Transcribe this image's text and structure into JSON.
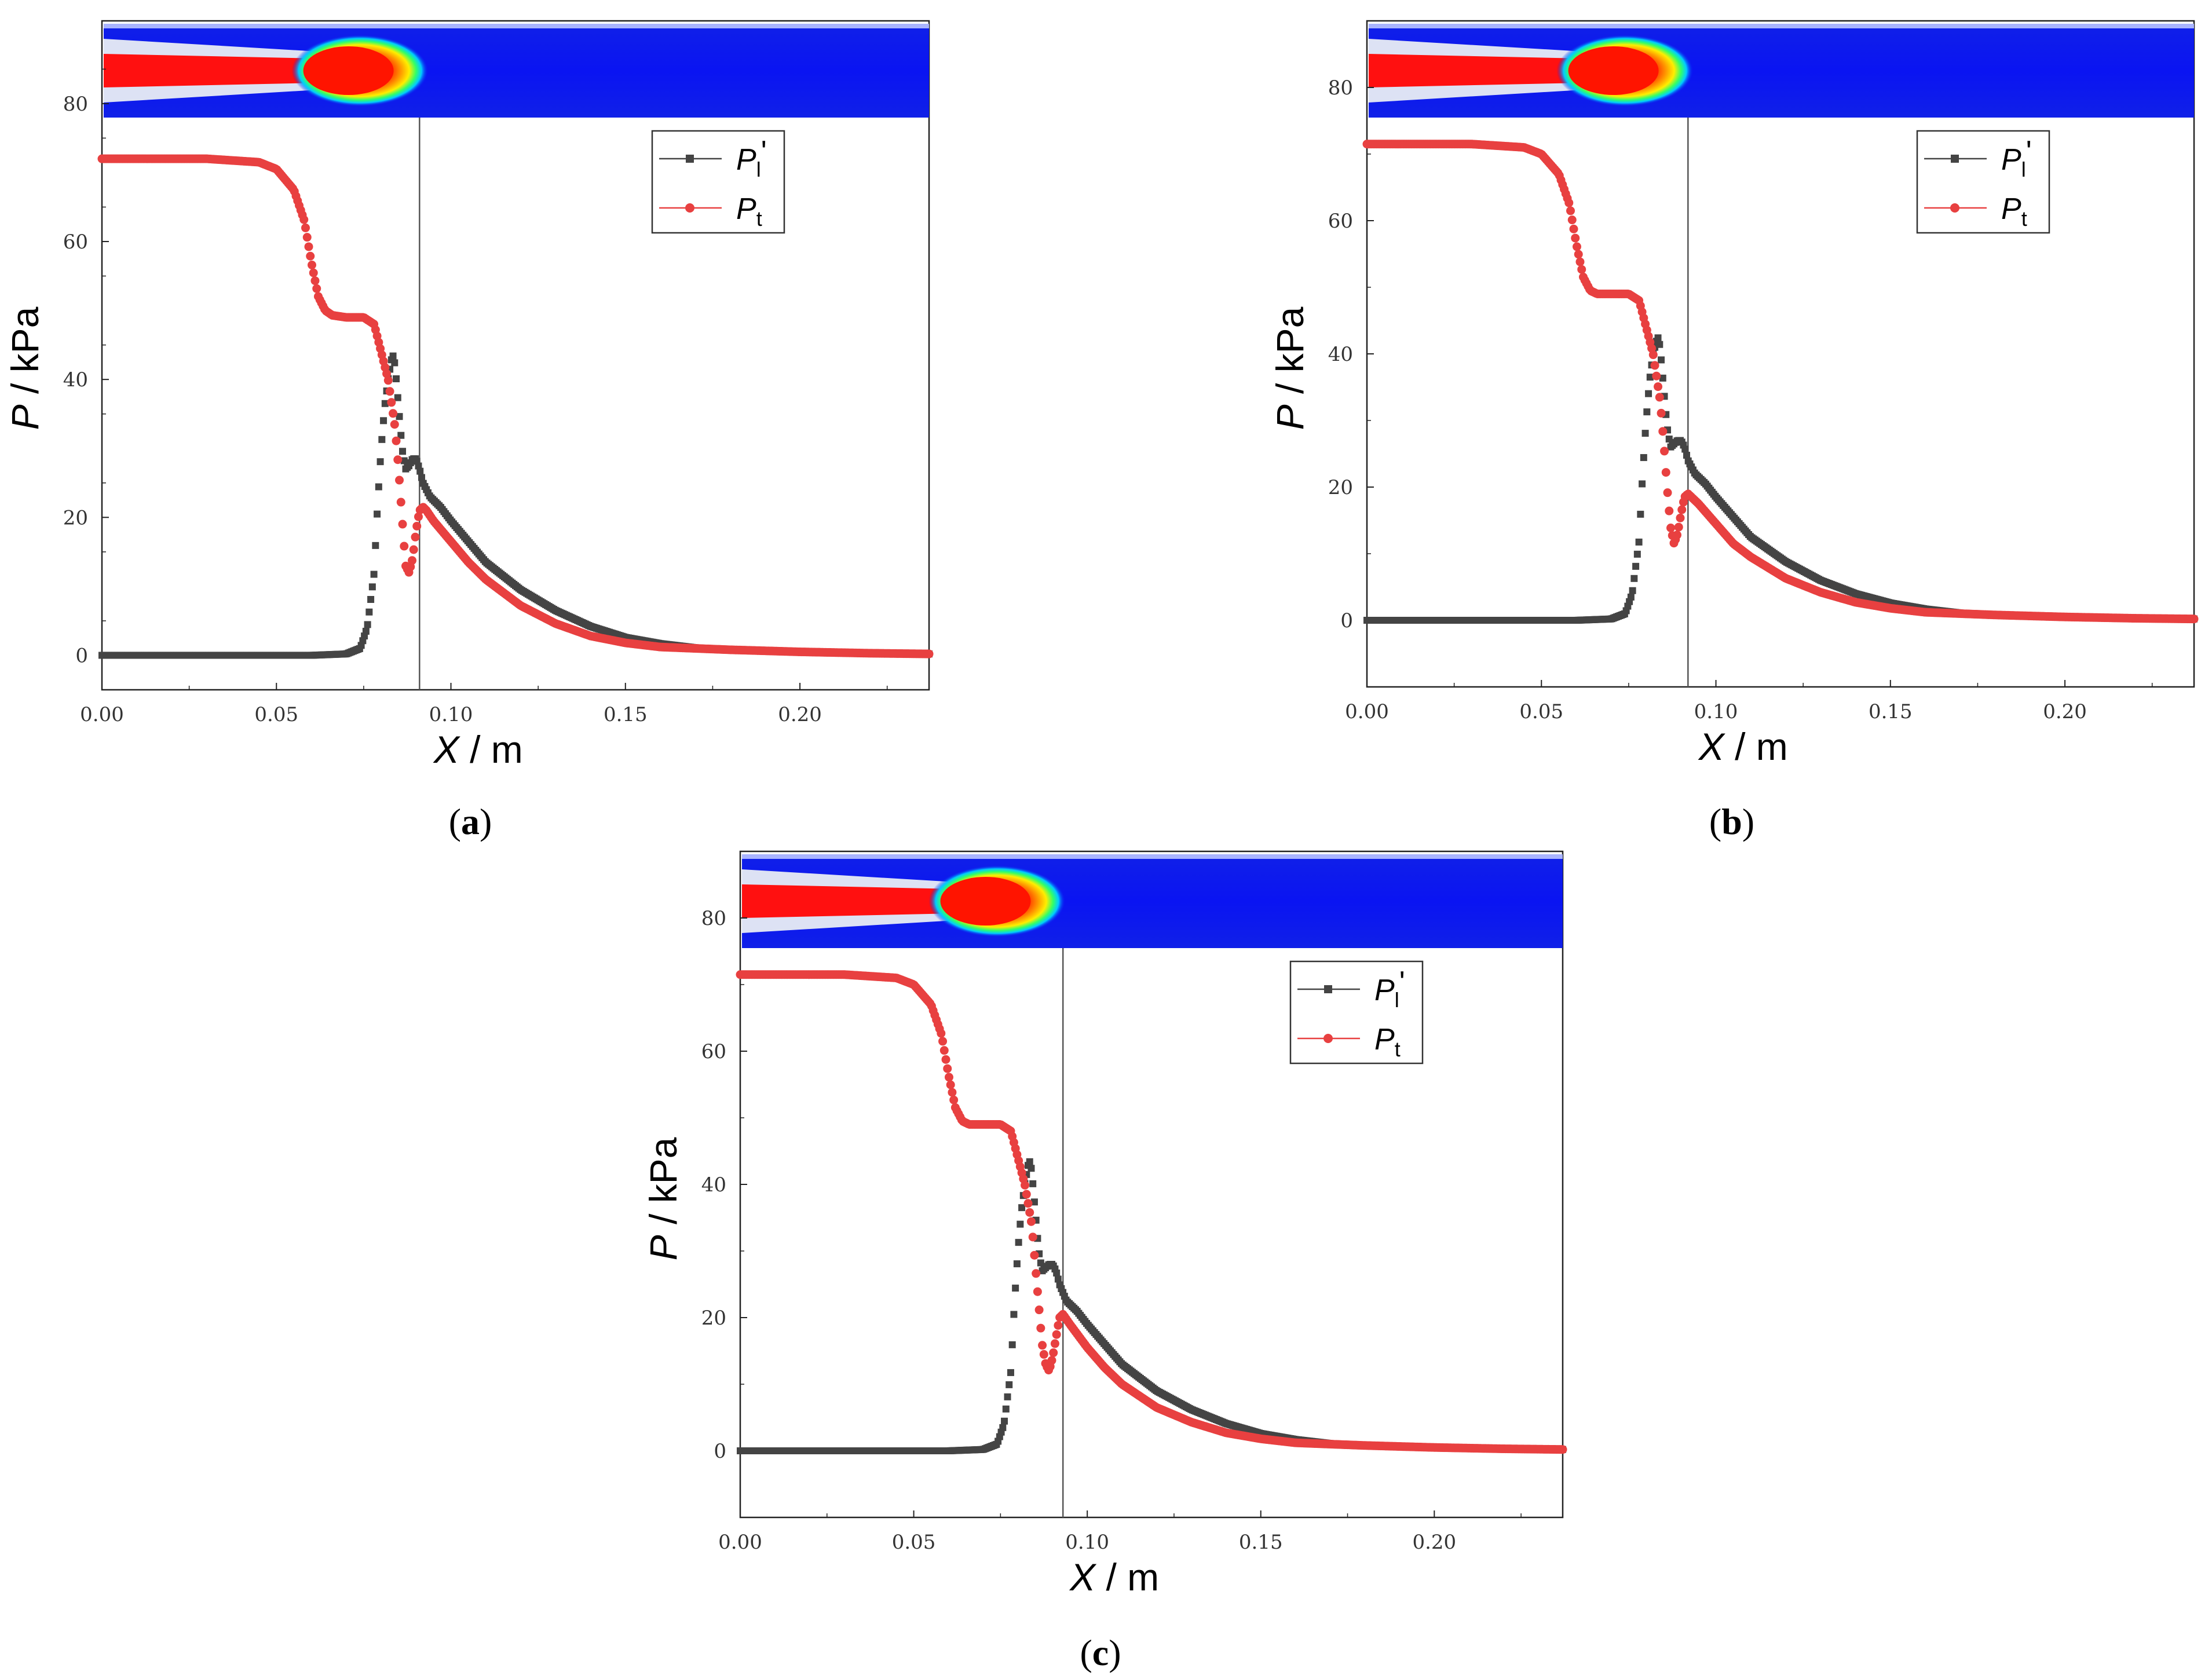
{
  "chart_data": [
    {
      "type": "line",
      "panel_label": "a",
      "xlabel": "X / m",
      "ylabel": "P / kPa",
      "xlim": [
        0,
        0.237
      ],
      "ylim": [
        -5,
        92
      ],
      "xticks": [
        "0.00",
        "0.05",
        "0.10",
        "0.15",
        "0.20"
      ],
      "yticks": [
        "0",
        "20",
        "40",
        "60",
        "80"
      ],
      "xtick_values": [
        0,
        0.05,
        0.1,
        0.15,
        0.2
      ],
      "ytick_values": [
        0,
        20,
        40,
        60,
        80
      ],
      "vertical_marker_x": 0.091,
      "legend": [
        "Pl'",
        "Pt"
      ],
      "series": [
        {
          "name": "Pl'",
          "color": "#444444",
          "marker": "square",
          "x": [
            0,
            0.02,
            0.04,
            0.06,
            0.07,
            0.074,
            0.076,
            0.078,
            0.079,
            0.08,
            0.081,
            0.082,
            0.083,
            0.0835,
            0.084,
            0.085,
            0.086,
            0.087,
            0.088,
            0.089,
            0.09,
            0.091,
            0.092,
            0.094,
            0.097,
            0.1,
            0.105,
            0.11,
            0.12,
            0.13,
            0.14,
            0.15,
            0.16,
            0.17,
            0.18,
            0.19,
            0.2,
            0.22,
            0.237
          ],
          "y": [
            0,
            0,
            0,
            0,
            0.2,
            1,
            4,
            12,
            22,
            30,
            36,
            40,
            43,
            43.5,
            42,
            36,
            30,
            27,
            27.5,
            28.5,
            28.5,
            27,
            25,
            23,
            21.5,
            19.5,
            16.5,
            13.5,
            9.5,
            6.5,
            4.2,
            2.6,
            1.7,
            1.1,
            0.8,
            0.6,
            0.5,
            0.3,
            0.2
          ]
        },
        {
          "name": "Pt",
          "color": "#e84040",
          "marker": "circle",
          "x": [
            0,
            0.03,
            0.045,
            0.05,
            0.055,
            0.058,
            0.06,
            0.062,
            0.064,
            0.066,
            0.07,
            0.075,
            0.078,
            0.08,
            0.082,
            0.084,
            0.085,
            0.086,
            0.087,
            0.088,
            0.089,
            0.09,
            0.091,
            0.092,
            0.093,
            0.095,
            0.1,
            0.105,
            0.11,
            0.12,
            0.13,
            0.14,
            0.15,
            0.16,
            0.18,
            0.2,
            0.22,
            0.237
          ],
          "y": [
            72,
            72,
            71.5,
            70.5,
            67.5,
            63,
            57,
            52,
            50,
            49.3,
            49,
            49,
            48,
            44,
            40,
            33,
            27,
            20,
            13,
            12,
            14,
            18,
            21,
            21.5,
            21,
            19.5,
            16.5,
            13.5,
            11,
            7.2,
            4.6,
            2.8,
            1.8,
            1.2,
            0.8,
            0.5,
            0.3,
            0.2
          ]
        }
      ]
    },
    {
      "type": "line",
      "panel_label": "b",
      "xlabel": "X / m",
      "ylabel": "P / kPa",
      "xlim": [
        0,
        0.237
      ],
      "ylim": [
        -10,
        90
      ],
      "xticks": [
        "0.00",
        "0.05",
        "0.10",
        "0.15",
        "0.20"
      ],
      "yticks": [
        "0",
        "20",
        "40",
        "60",
        "80"
      ],
      "xtick_values": [
        0,
        0.05,
        0.1,
        0.15,
        0.2
      ],
      "ytick_values": [
        0,
        20,
        40,
        60,
        80
      ],
      "vertical_marker_x": 0.092,
      "legend": [
        "Pl'",
        "Pt"
      ],
      "series": [
        {
          "name": "Pl'",
          "color": "#444444",
          "marker": "square",
          "x": [
            0,
            0.02,
            0.04,
            0.06,
            0.07,
            0.074,
            0.076,
            0.078,
            0.079,
            0.08,
            0.081,
            0.082,
            0.083,
            0.0835,
            0.084,
            0.085,
            0.086,
            0.087,
            0.088,
            0.089,
            0.09,
            0.091,
            0.092,
            0.094,
            0.097,
            0.1,
            0.105,
            0.11,
            0.12,
            0.13,
            0.14,
            0.15,
            0.16,
            0.17,
            0.18,
            0.19,
            0.2,
            0.22,
            0.237
          ],
          "y": [
            0,
            0,
            0,
            0,
            0.2,
            1,
            4,
            12,
            22,
            30,
            36,
            40,
            42,
            42.5,
            41,
            35,
            29,
            26,
            26.5,
            27,
            27,
            26,
            24,
            22,
            20.5,
            18.5,
            15.5,
            12.5,
            8.8,
            6,
            4,
            2.6,
            1.7,
            1.1,
            0.8,
            0.6,
            0.5,
            0.3,
            0.2
          ]
        },
        {
          "name": "Pt",
          "color": "#e84040",
          "marker": "circle",
          "x": [
            0,
            0.03,
            0.045,
            0.05,
            0.055,
            0.058,
            0.06,
            0.062,
            0.064,
            0.066,
            0.07,
            0.075,
            0.078,
            0.08,
            0.082,
            0.084,
            0.085,
            0.086,
            0.087,
            0.088,
            0.089,
            0.09,
            0.091,
            0.092,
            0.093,
            0.095,
            0.1,
            0.105,
            0.11,
            0.12,
            0.13,
            0.14,
            0.15,
            0.16,
            0.18,
            0.2,
            0.22,
            0.237
          ],
          "y": [
            71.5,
            71.5,
            71,
            70,
            67,
            62.5,
            56.5,
            51.5,
            49.5,
            49,
            49,
            49,
            48,
            44,
            40,
            33,
            27,
            20,
            14,
            11.5,
            13,
            16,
            18.5,
            19,
            18.5,
            17.5,
            14.5,
            11.5,
            9.5,
            6.3,
            4.2,
            2.7,
            1.8,
            1.2,
            0.8,
            0.5,
            0.3,
            0.2
          ]
        }
      ]
    },
    {
      "type": "line",
      "panel_label": "c",
      "xlabel": "X / m",
      "ylabel": "P / kPa",
      "xlim": [
        0,
        0.237
      ],
      "ylim": [
        -10,
        90
      ],
      "xticks": [
        "0.00",
        "0.05",
        "0.10",
        "0.15",
        "0.20"
      ],
      "yticks": [
        "0",
        "20",
        "40",
        "60",
        "80"
      ],
      "xtick_values": [
        0,
        0.05,
        0.1,
        0.15,
        0.2
      ],
      "ytick_values": [
        0,
        20,
        40,
        60,
        80
      ],
      "vertical_marker_x": 0.093,
      "legend": [
        "Pl'",
        "Pt"
      ],
      "series": [
        {
          "name": "Pl'",
          "color": "#444444",
          "marker": "square",
          "x": [
            0,
            0.02,
            0.04,
            0.06,
            0.07,
            0.074,
            0.076,
            0.078,
            0.079,
            0.08,
            0.081,
            0.082,
            0.083,
            0.0835,
            0.084,
            0.085,
            0.086,
            0.087,
            0.088,
            0.089,
            0.09,
            0.091,
            0.092,
            0.094,
            0.097,
            0.1,
            0.105,
            0.11,
            0.12,
            0.13,
            0.14,
            0.15,
            0.16,
            0.17,
            0.18,
            0.19,
            0.2,
            0.22,
            0.237
          ],
          "y": [
            0,
            0,
            0,
            0,
            0.2,
            1,
            4,
            12,
            22,
            30,
            36,
            40,
            43,
            43.5,
            42,
            36,
            30,
            27,
            27.5,
            28,
            28,
            27,
            25,
            22.5,
            21,
            19,
            16,
            13,
            9,
            6.2,
            4.1,
            2.6,
            1.7,
            1.1,
            0.8,
            0.6,
            0.5,
            0.3,
            0.2
          ]
        },
        {
          "name": "Pt",
          "color": "#e84040",
          "marker": "circle",
          "x": [
            0,
            0.03,
            0.045,
            0.05,
            0.055,
            0.058,
            0.06,
            0.062,
            0.064,
            0.066,
            0.07,
            0.075,
            0.078,
            0.08,
            0.082,
            0.084,
            0.085,
            0.086,
            0.087,
            0.088,
            0.089,
            0.09,
            0.091,
            0.092,
            0.093,
            0.095,
            0.1,
            0.105,
            0.11,
            0.12,
            0.13,
            0.14,
            0.15,
            0.16,
            0.18,
            0.2,
            0.22,
            0.237
          ],
          "y": [
            71.5,
            71.5,
            71,
            70,
            67,
            62.5,
            56.5,
            51.5,
            49.5,
            49,
            49,
            49,
            48,
            44,
            40,
            34,
            28,
            22,
            16,
            13,
            12,
            14,
            17,
            20,
            20.5,
            19,
            15.5,
            12.5,
            10,
            6.5,
            4.3,
            2.7,
            1.8,
            1.2,
            0.8,
            0.5,
            0.3,
            0.2
          ]
        }
      ]
    }
  ]
}
